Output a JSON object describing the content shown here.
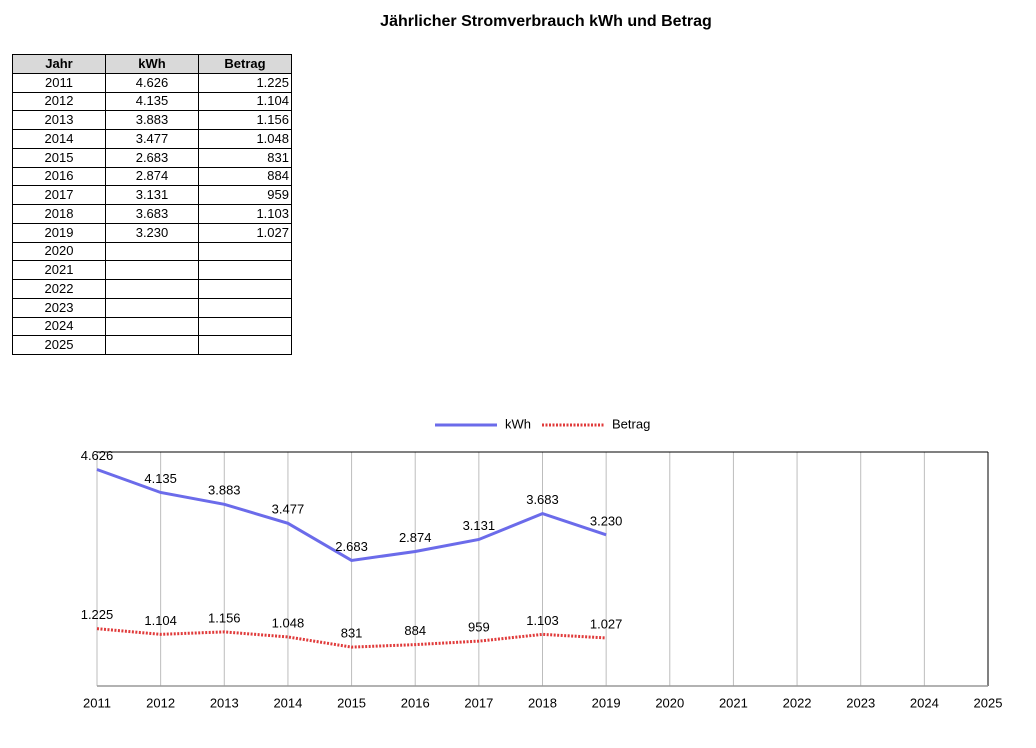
{
  "title": "Jährlicher Stromverbrauch kWh und Betrag",
  "table": {
    "header": [
      "Jahr",
      "kWh",
      "Betrag"
    ],
    "rows": [
      [
        "2011",
        "4.626",
        "1.225"
      ],
      [
        "2012",
        "4.135",
        "1.104"
      ],
      [
        "2013",
        "3.883",
        "1.156"
      ],
      [
        "2014",
        "3.477",
        "1.048"
      ],
      [
        "2015",
        "2.683",
        "831"
      ],
      [
        "2016",
        "2.874",
        "884"
      ],
      [
        "2017",
        "3.131",
        "959"
      ],
      [
        "2018",
        "3.683",
        "1.103"
      ],
      [
        "2019",
        "3.230",
        "1.027"
      ],
      [
        "2020"
      ],
      [
        "2021"
      ],
      [
        "2022"
      ],
      [
        "2023"
      ],
      [
        "2024"
      ],
      [
        "2025"
      ]
    ]
  },
  "chart_data": {
    "type": "line",
    "categories": [
      "2011",
      "2012",
      "2013",
      "2014",
      "2015",
      "2016",
      "2017",
      "2018",
      "2019",
      "2020",
      "2021",
      "2022",
      "2023",
      "2024",
      "2025"
    ],
    "ylim": [
      0,
      5000
    ],
    "grid": true,
    "legend": "top",
    "series": [
      {
        "name": "kWh",
        "color": "#6b6bea",
        "dash": false,
        "values": [
          4626,
          4135,
          3883,
          3477,
          2683,
          2874,
          3131,
          3683,
          3230,
          null,
          null,
          null,
          null,
          null,
          null
        ],
        "value_labels": [
          "4.626",
          "4.135",
          "3.883",
          "3.477",
          "2.683",
          "2.874",
          "3.131",
          "3.683",
          "3.230",
          null,
          null,
          null,
          null,
          null,
          null
        ]
      },
      {
        "name": "Betrag",
        "color": "#e03a3a",
        "dash": true,
        "values": [
          1225,
          1104,
          1156,
          1048,
          831,
          884,
          959,
          1103,
          1027,
          null,
          null,
          null,
          null,
          null,
          null
        ],
        "value_labels": [
          "1.225",
          "1.104",
          "1.156",
          "1.048",
          "831",
          "884",
          "959",
          "1.103",
          "1.027",
          null,
          null,
          null,
          null,
          null,
          null
        ]
      }
    ]
  }
}
